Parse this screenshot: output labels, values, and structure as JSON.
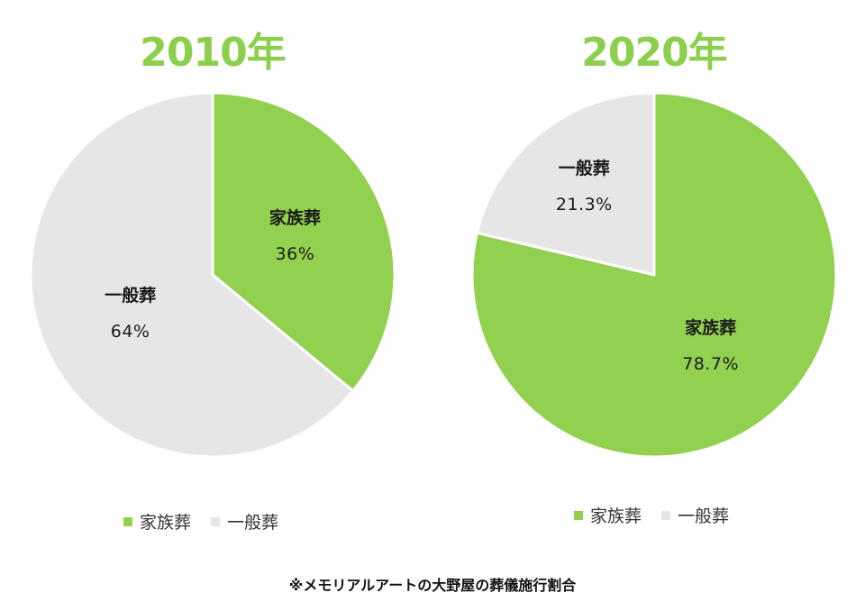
{
  "colors": {
    "family": "#92d050",
    "general": "#e6e6e6",
    "title": "#8ccf4d"
  },
  "chart_data": [
    {
      "type": "pie",
      "title": "2010年",
      "slices": [
        {
          "label": "家族葬",
          "value": 36,
          "display": "36%"
        },
        {
          "label": "一般葬",
          "value": 64,
          "display": "64%"
        }
      ],
      "legend": [
        "家族葬",
        "一般葬"
      ],
      "legend_position": "bottom"
    },
    {
      "type": "pie",
      "title": "2020年",
      "slices": [
        {
          "label": "家族葬",
          "value": 78.7,
          "display": "78.7%"
        },
        {
          "label": "一般葬",
          "value": 21.3,
          "display": "21.3%"
        }
      ],
      "legend": [
        "家族葬",
        "一般葬"
      ],
      "legend_position": "bottom"
    }
  ],
  "footnote": "※メモリアルアートの大野屋の葬儀施行割合"
}
